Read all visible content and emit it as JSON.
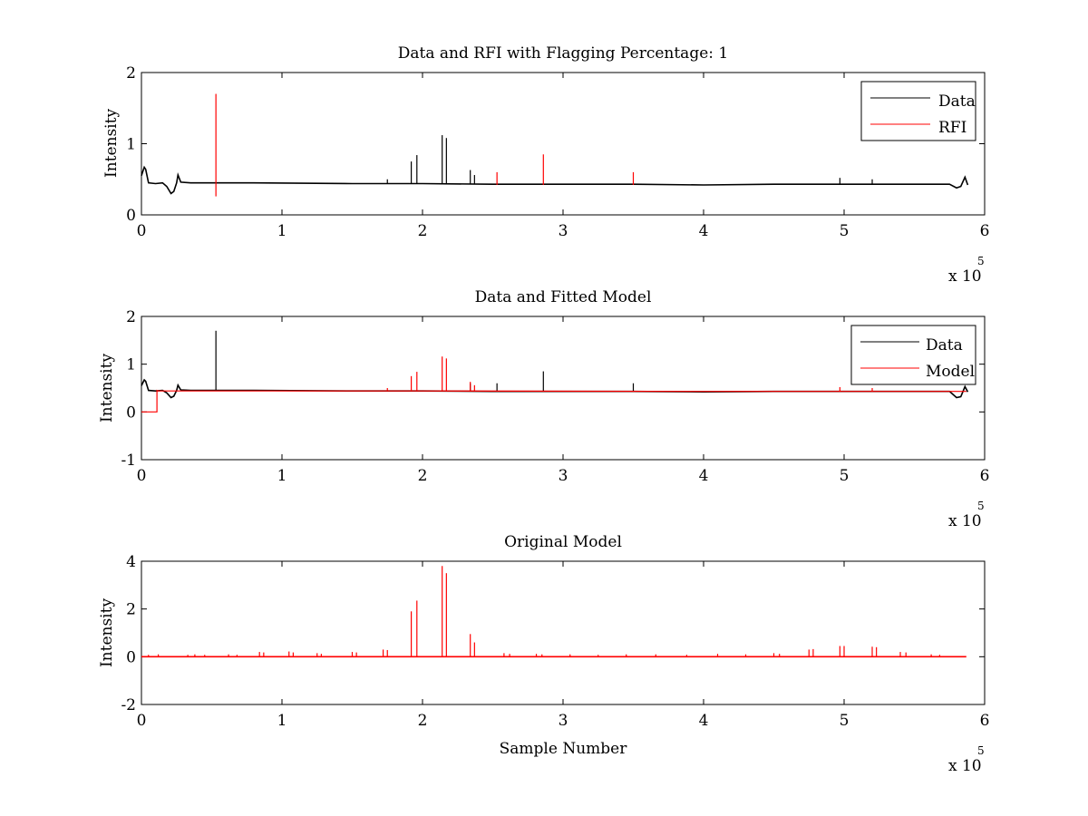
{
  "figure": {
    "background": "#ffffff"
  },
  "colors": {
    "data": "#000000",
    "rfi": "#ff0000",
    "model": "#ff0000"
  },
  "chart_data": [
    {
      "type": "line",
      "title": "Data and RFI with Flagging Percentage: 1",
      "xlabel": "",
      "ylabel": "Intensity",
      "xlim": [
        0,
        6
      ],
      "ylim": [
        0,
        2
      ],
      "x_ticks": [
        "0",
        "1",
        "2",
        "3",
        "4",
        "5",
        "6"
      ],
      "y_ticks": [
        "0",
        "1",
        "2"
      ],
      "x_multiplier": {
        "base": "x 10",
        "exponent": "5"
      },
      "grid": false,
      "legend": {
        "placement": "top-right",
        "entries": [
          "Data",
          "RFI"
        ]
      },
      "series": [
        {
          "name": "Data",
          "color": "#000000",
          "x": [
            0.0,
            0.02,
            0.03,
            0.05,
            0.1,
            0.15,
            0.18,
            0.21,
            0.23,
            0.25,
            0.26,
            0.28,
            0.35,
            0.8,
            1.5,
            2.0,
            2.5,
            3.0,
            3.5,
            4.0,
            4.5,
            5.0,
            5.5,
            5.75,
            5.8,
            5.83,
            5.86,
            5.88
          ],
          "y": [
            0.55,
            0.67,
            0.64,
            0.45,
            0.44,
            0.45,
            0.4,
            0.3,
            0.33,
            0.45,
            0.56,
            0.46,
            0.45,
            0.45,
            0.44,
            0.44,
            0.43,
            0.43,
            0.43,
            0.42,
            0.43,
            0.43,
            0.43,
            0.43,
            0.38,
            0.4,
            0.53,
            0.42
          ],
          "spikes": [
            {
              "x": 1.92,
              "y": 0.75
            },
            {
              "x": 1.96,
              "y": 0.84
            },
            {
              "x": 2.14,
              "y": 1.12
            },
            {
              "x": 2.17,
              "y": 1.08
            },
            {
              "x": 2.34,
              "y": 0.63
            },
            {
              "x": 2.37,
              "y": 0.56
            },
            {
              "x": 1.75,
              "y": 0.5
            },
            {
              "x": 4.97,
              "y": 0.52
            },
            {
              "x": 5.2,
              "y": 0.5
            }
          ]
        },
        {
          "name": "RFI",
          "color": "#ff0000",
          "spikes": [
            {
              "x": 0.53,
              "y0": 0.26,
              "y1": 1.7
            },
            {
              "x": 2.53,
              "y0": 0.42,
              "y1": 0.6
            },
            {
              "x": 2.86,
              "y0": 0.42,
              "y1": 0.85
            },
            {
              "x": 3.5,
              "y0": 0.42,
              "y1": 0.6
            }
          ]
        }
      ]
    },
    {
      "type": "line",
      "title": "Data and Fitted Model",
      "xlabel": "",
      "ylabel": "Intensity",
      "xlim": [
        0,
        6
      ],
      "ylim": [
        -1,
        2
      ],
      "x_ticks": [
        "0",
        "1",
        "2",
        "3",
        "4",
        "5",
        "6"
      ],
      "y_ticks": [
        "-1",
        "0",
        "1",
        "2"
      ],
      "x_multiplier": {
        "base": "x 10",
        "exponent": "5"
      },
      "grid": false,
      "legend": {
        "placement": "top-right",
        "entries": [
          "Data",
          "Model"
        ]
      },
      "series": [
        {
          "name": "Data",
          "color": "#000000",
          "x": [
            0.0,
            0.02,
            0.03,
            0.05,
            0.1,
            0.15,
            0.18,
            0.21,
            0.23,
            0.25,
            0.26,
            0.28,
            0.35,
            0.8,
            1.5,
            2.0,
            2.5,
            3.0,
            3.5,
            4.0,
            4.5,
            5.0,
            5.5,
            5.75,
            5.8,
            5.83,
            5.86,
            5.88
          ],
          "y": [
            0.55,
            0.67,
            0.64,
            0.45,
            0.44,
            0.45,
            0.4,
            0.3,
            0.33,
            0.45,
            0.56,
            0.46,
            0.45,
            0.45,
            0.44,
            0.44,
            0.43,
            0.43,
            0.43,
            0.42,
            0.43,
            0.43,
            0.43,
            0.43,
            0.3,
            0.32,
            0.53,
            0.42
          ],
          "spikes": [
            {
              "x": 0.53,
              "y": 1.7
            },
            {
              "x": 2.86,
              "y": 0.85
            },
            {
              "x": 2.53,
              "y": 0.6
            },
            {
              "x": 3.5,
              "y": 0.6
            },
            {
              "x": 2.34,
              "y": 0.6
            }
          ]
        },
        {
          "name": "Model",
          "color": "#ff0000",
          "x": [
            0.0,
            0.11,
            0.11,
            0.12,
            2.0,
            4.0,
            5.8,
            5.87
          ],
          "y": [
            0.0,
            0.0,
            0.45,
            0.44,
            0.44,
            0.43,
            0.43,
            0.43
          ],
          "spikes": [
            {
              "x": 1.92,
              "y": 0.75
            },
            {
              "x": 1.96,
              "y": 0.84
            },
            {
              "x": 2.14,
              "y": 1.16
            },
            {
              "x": 2.17,
              "y": 1.12
            },
            {
              "x": 2.34,
              "y": 0.63
            },
            {
              "x": 2.37,
              "y": 0.56
            },
            {
              "x": 1.75,
              "y": 0.5
            },
            {
              "x": 4.97,
              "y": 0.52
            },
            {
              "x": 5.2,
              "y": 0.5
            }
          ]
        }
      ]
    },
    {
      "type": "line",
      "title": "Original Model",
      "xlabel": "Sample Number",
      "ylabel": "Intensity",
      "xlim": [
        0,
        6
      ],
      "ylim": [
        -2,
        4
      ],
      "x_ticks": [
        "0",
        "1",
        "2",
        "3",
        "4",
        "5",
        "6"
      ],
      "y_ticks": [
        "-2",
        "0",
        "2",
        "4"
      ],
      "x_multiplier": {
        "base": "x 10",
        "exponent": "5"
      },
      "grid": false,
      "legend": null,
      "series": [
        {
          "color": "#ff0000",
          "x": [
            0.0,
            5.87
          ],
          "y": [
            0.0,
            0.0
          ],
          "spikes": [
            {
              "x": 0.05,
              "y": 0.08
            },
            {
              "x": 0.12,
              "y": 0.1
            },
            {
              "x": 0.33,
              "y": 0.08
            },
            {
              "x": 0.38,
              "y": 0.1
            },
            {
              "x": 0.45,
              "y": 0.08
            },
            {
              "x": 0.62,
              "y": 0.1
            },
            {
              "x": 0.68,
              "y": 0.08
            },
            {
              "x": 0.84,
              "y": 0.2
            },
            {
              "x": 0.87,
              "y": 0.18
            },
            {
              "x": 1.05,
              "y": 0.22
            },
            {
              "x": 1.08,
              "y": 0.18
            },
            {
              "x": 1.25,
              "y": 0.15
            },
            {
              "x": 1.28,
              "y": 0.12
            },
            {
              "x": 1.5,
              "y": 0.2
            },
            {
              "x": 1.53,
              "y": 0.18
            },
            {
              "x": 1.72,
              "y": 0.3
            },
            {
              "x": 1.75,
              "y": 0.28
            },
            {
              "x": 1.92,
              "y": 1.9
            },
            {
              "x": 1.96,
              "y": 2.35
            },
            {
              "x": 2.14,
              "y": 3.8
            },
            {
              "x": 2.17,
              "y": 3.5
            },
            {
              "x": 2.34,
              "y": 0.95
            },
            {
              "x": 2.37,
              "y": 0.6
            },
            {
              "x": 2.58,
              "y": 0.15
            },
            {
              "x": 2.62,
              "y": 0.12
            },
            {
              "x": 2.81,
              "y": 0.12
            },
            {
              "x": 2.85,
              "y": 0.1
            },
            {
              "x": 3.05,
              "y": 0.1
            },
            {
              "x": 3.25,
              "y": 0.08
            },
            {
              "x": 3.45,
              "y": 0.1
            },
            {
              "x": 3.66,
              "y": 0.1
            },
            {
              "x": 3.88,
              "y": 0.08
            },
            {
              "x": 4.1,
              "y": 0.12
            },
            {
              "x": 4.3,
              "y": 0.1
            },
            {
              "x": 4.5,
              "y": 0.15
            },
            {
              "x": 4.54,
              "y": 0.12
            },
            {
              "x": 4.75,
              "y": 0.3
            },
            {
              "x": 4.78,
              "y": 0.32
            },
            {
              "x": 4.97,
              "y": 0.45
            },
            {
              "x": 5.0,
              "y": 0.45
            },
            {
              "x": 5.2,
              "y": 0.42
            },
            {
              "x": 5.23,
              "y": 0.4
            },
            {
              "x": 5.4,
              "y": 0.2
            },
            {
              "x": 5.44,
              "y": 0.18
            },
            {
              "x": 5.62,
              "y": 0.1
            },
            {
              "x": 5.68,
              "y": 0.08
            }
          ]
        }
      ]
    }
  ]
}
